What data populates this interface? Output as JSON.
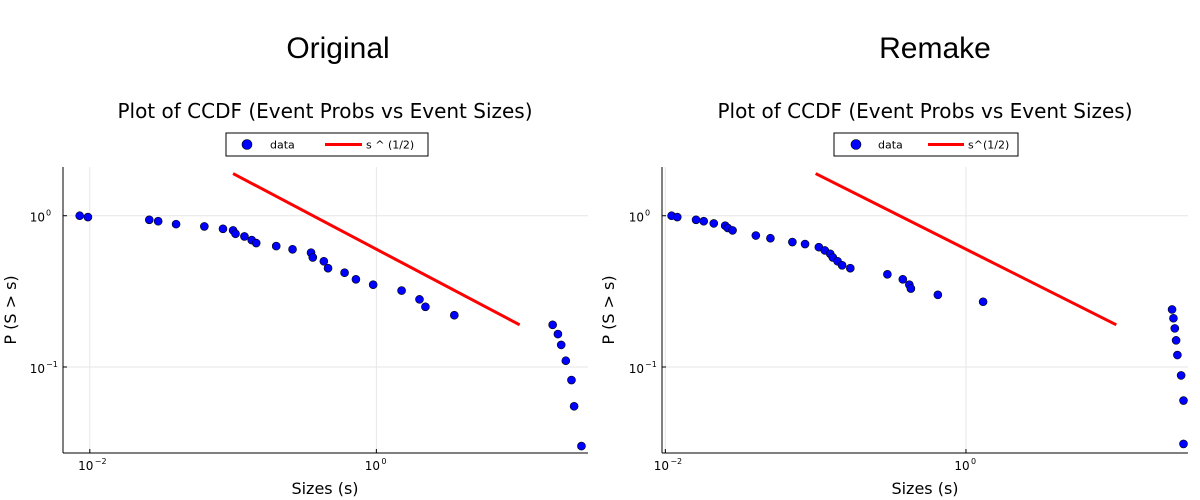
{
  "panels": [
    {
      "heading": "Original",
      "chart_data": {
        "type": "scatter",
        "title": "Plot of CCDF (Event Probs vs Event Sizes)",
        "xlabel": "Sizes (s)",
        "ylabel": "P (S > s)",
        "xscale": "log",
        "yscale": "log",
        "xlim": [
          0.0065,
          30
        ],
        "ylim": [
          0.027,
          2.1
        ],
        "xticks": [
          {
            "base": "10",
            "exp": "−2",
            "value": 0.01
          },
          {
            "base": "10",
            "exp": "0",
            "value": 1
          }
        ],
        "yticks": [
          {
            "base": "10",
            "exp": "−1",
            "value": 0.1
          },
          {
            "base": "10",
            "exp": "0",
            "value": 1.0
          }
        ],
        "grid": true,
        "legend_position": "top-center",
        "series": [
          {
            "name": "data",
            "kind": "scatter",
            "color": "#0000ff",
            "x": [
              0.0085,
              0.0097,
              0.026,
              0.03,
              0.04,
              0.063,
              0.085,
              0.1,
              0.104,
              0.12,
              0.135,
              0.145,
              0.2,
              0.26,
              0.35,
              0.36,
              0.43,
              0.46,
              0.6,
              0.72,
              0.95,
              1.5,
              2.0,
              2.2,
              3.5,
              17.0,
              18.5,
              19.5,
              21.0,
              23.0,
              24.0,
              27.0
            ],
            "y": [
              1.0,
              0.98,
              0.94,
              0.92,
              0.88,
              0.85,
              0.82,
              0.8,
              0.76,
              0.73,
              0.69,
              0.66,
              0.63,
              0.6,
              0.57,
              0.53,
              0.5,
              0.45,
              0.42,
              0.38,
              0.35,
              0.32,
              0.28,
              0.25,
              0.22,
              0.19,
              0.165,
              0.14,
              0.11,
              0.082,
              0.055,
              0.03
            ]
          },
          {
            "name": "s ^ (1/2)",
            "kind": "line",
            "color": "#ff0000",
            "x": [
              0.1,
              10.0
            ],
            "y": [
              1.9,
              0.19
            ]
          }
        ]
      }
    },
    {
      "heading": "Remake",
      "chart_data": {
        "type": "scatter",
        "title": "Plot of CCDF (Event Probs vs Event Sizes)",
        "xlabel": "Sizes (s)",
        "ylabel": "P (S > s)",
        "xscale": "log",
        "yscale": "log",
        "xlim": [
          0.0095,
          30
        ],
        "ylim": [
          0.027,
          2.1
        ],
        "xticks": [
          {
            "base": "10",
            "exp": "−2",
            "value": 0.01
          },
          {
            "base": "10",
            "exp": "0",
            "value": 1
          }
        ],
        "yticks": [
          {
            "base": "10",
            "exp": "−1",
            "value": 0.1
          },
          {
            "base": "10",
            "exp": "0",
            "value": 1.0
          }
        ],
        "grid": true,
        "legend_position": "top-center",
        "series": [
          {
            "name": "data",
            "kind": "scatter",
            "color": "#0000ff",
            "x": [
              0.011,
              0.012,
              0.016,
              0.018,
              0.021,
              0.025,
              0.026,
              0.028,
              0.04,
              0.05,
              0.07,
              0.085,
              0.105,
              0.115,
              0.125,
              0.13,
              0.14,
              0.15,
              0.17,
              0.3,
              0.38,
              0.42,
              0.43,
              0.65,
              1.3,
              23.5,
              24.0,
              24.5,
              25.0,
              25.5,
              27.0,
              28.0,
              28.0
            ],
            "y": [
              1.0,
              0.98,
              0.94,
              0.92,
              0.89,
              0.86,
              0.83,
              0.8,
              0.74,
              0.71,
              0.67,
              0.65,
              0.62,
              0.59,
              0.56,
              0.53,
              0.5,
              0.47,
              0.45,
              0.41,
              0.38,
              0.35,
              0.33,
              0.3,
              0.27,
              0.24,
              0.21,
              0.18,
              0.15,
              0.12,
              0.088,
              0.06,
              0.031
            ]
          },
          {
            "name": "s^(1/2)",
            "kind": "line",
            "color": "#ff0000",
            "x": [
              0.1,
              10.0
            ],
            "y": [
              1.9,
              0.19
            ]
          }
        ]
      }
    }
  ]
}
